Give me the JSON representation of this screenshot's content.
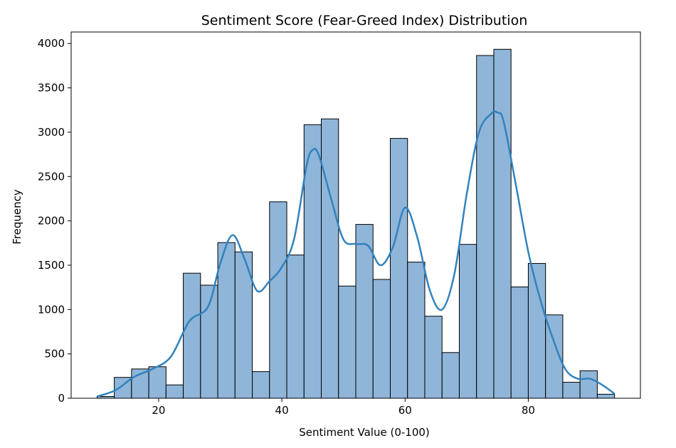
{
  "chart_data": {
    "type": "bar",
    "title": "Sentiment Score (Fear-Greed Index) Distribution",
    "xlabel": "Sentiment Value (0-100)",
    "ylabel": "Frequency",
    "xlim": [
      5.8,
      98.2
    ],
    "ylim": [
      0,
      4130
    ],
    "xticks": [
      20,
      40,
      60,
      80
    ],
    "yticks": [
      0,
      500,
      1000,
      1500,
      2000,
      2500,
      3000,
      3500,
      4000
    ],
    "bin_start": 10,
    "bin_width": 2.8,
    "values": [
      20,
      235,
      330,
      355,
      150,
      1410,
      1275,
      1755,
      1650,
      300,
      2215,
      1615,
      3085,
      3150,
      1265,
      1960,
      1340,
      2930,
      1535,
      925,
      515,
      1735,
      3865,
      3935,
      1255,
      1520,
      940,
      180,
      310,
      45
    ],
    "kde": {
      "x": [
        10,
        13,
        16,
        19,
        22,
        25,
        28,
        30,
        32,
        34,
        36,
        38,
        40,
        42,
        44,
        45,
        46,
        48,
        50,
        52,
        54,
        56,
        58,
        60,
        62,
        64,
        66,
        68,
        70,
        72,
        74,
        75,
        76,
        78,
        80,
        82,
        84,
        86,
        88,
        90,
        92,
        94
      ],
      "y": [
        20,
        90,
        240,
        330,
        470,
        870,
        1030,
        1520,
        1840,
        1560,
        1210,
        1320,
        1480,
        1800,
        2620,
        2800,
        2740,
        2250,
        1790,
        1740,
        1720,
        1500,
        1700,
        2150,
        1810,
        1220,
        1000,
        1400,
        2300,
        3000,
        3210,
        3220,
        3120,
        2400,
        1650,
        1100,
        670,
        330,
        220,
        220,
        150,
        50
      ]
    },
    "bar_color": "#8fb5d9",
    "bar_edge_color": "#000000",
    "line_color": "#3182bd",
    "grid": false,
    "legend": false
  }
}
